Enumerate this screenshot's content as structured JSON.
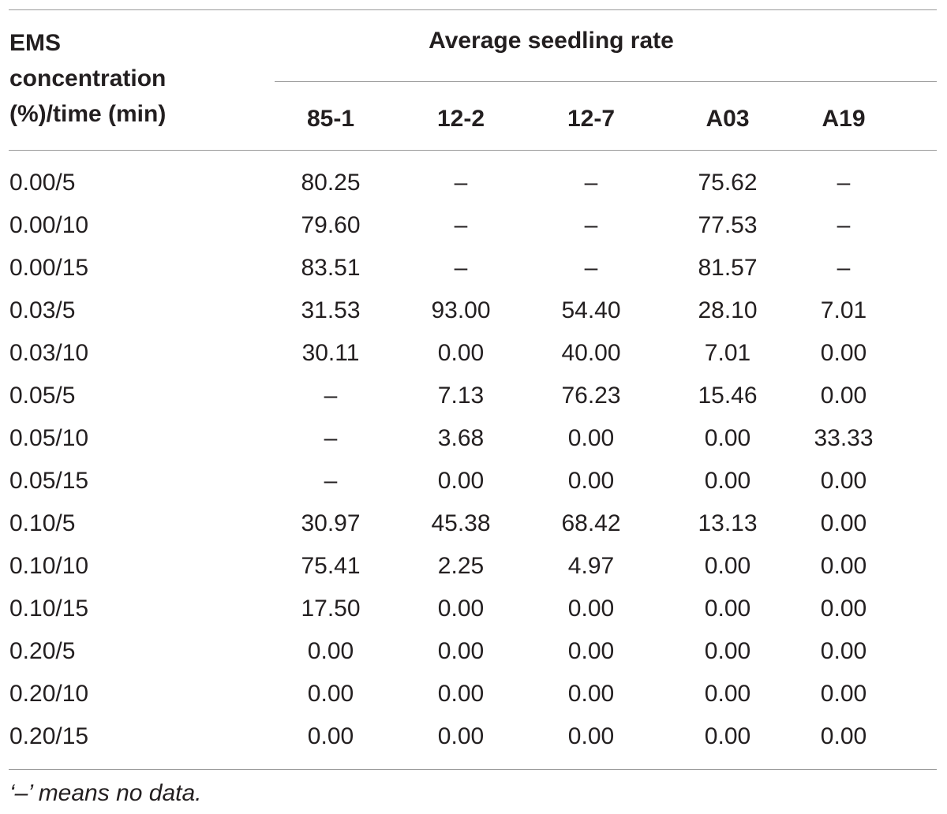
{
  "table": {
    "stub_header": [
      "EMS",
      "concentration",
      "(%)/time (min)"
    ],
    "group_header": "Average seedling rate",
    "columns": [
      "85-1",
      "12-2",
      "12-7",
      "A03",
      "A19"
    ],
    "rows": [
      {
        "label": "0.00/5",
        "values": [
          "80.25",
          "–",
          "–",
          "75.62",
          "–"
        ]
      },
      {
        "label": "0.00/10",
        "values": [
          "79.60",
          "–",
          "–",
          "77.53",
          "–"
        ]
      },
      {
        "label": "0.00/15",
        "values": [
          "83.51",
          "–",
          "–",
          "81.57",
          "–"
        ]
      },
      {
        "label": "0.03/5",
        "values": [
          "31.53",
          "93.00",
          "54.40",
          "28.10",
          "7.01"
        ]
      },
      {
        "label": "0.03/10",
        "values": [
          "30.11",
          "0.00",
          "40.00",
          "7.01",
          "0.00"
        ]
      },
      {
        "label": "0.05/5",
        "values": [
          "–",
          "7.13",
          "76.23",
          "15.46",
          "0.00"
        ]
      },
      {
        "label": "0.05/10",
        "values": [
          "–",
          "3.68",
          "0.00",
          "0.00",
          "33.33"
        ]
      },
      {
        "label": "0.05/15",
        "values": [
          "–",
          "0.00",
          "0.00",
          "0.00",
          "0.00"
        ]
      },
      {
        "label": "0.10/5",
        "values": [
          "30.97",
          "45.38",
          "68.42",
          "13.13",
          "0.00"
        ]
      },
      {
        "label": "0.10/10",
        "values": [
          "75.41",
          "2.25",
          "4.97",
          "0.00",
          "0.00"
        ]
      },
      {
        "label": "0.10/15",
        "values": [
          "17.50",
          "0.00",
          "0.00",
          "0.00",
          "0.00"
        ]
      },
      {
        "label": "0.20/5",
        "values": [
          "0.00",
          "0.00",
          "0.00",
          "0.00",
          "0.00"
        ]
      },
      {
        "label": "0.20/10",
        "values": [
          "0.00",
          "0.00",
          "0.00",
          "0.00",
          "0.00"
        ]
      },
      {
        "label": "0.20/15",
        "values": [
          "0.00",
          "0.00",
          "0.00",
          "0.00",
          "0.00"
        ]
      }
    ],
    "footnote": "‘–’ means no data."
  }
}
